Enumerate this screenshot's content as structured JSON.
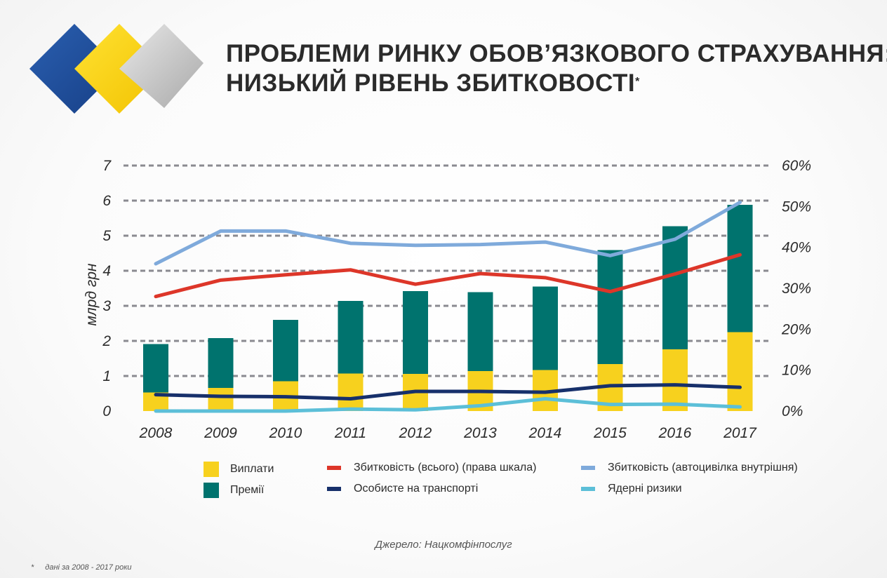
{
  "title": {
    "line1": "ПРОБЛЕМИ РИНКУ ОБОВ’ЯЗКОВОГО СТРАХУВАННЯ:",
    "line2": "НИЗЬКИЙ РІВЕНЬ ЗБИТКОВОСТІ",
    "marker": "*"
  },
  "logo": {
    "colors": [
      "#1f4e9c",
      "#f7d117",
      "#c9c9c9"
    ]
  },
  "chart_data": {
    "type": "bar+line",
    "categories": [
      "2008",
      "2009",
      "2010",
      "2011",
      "2012",
      "2013",
      "2014",
      "2015",
      "2016",
      "2017"
    ],
    "ylabel": "млрд грн",
    "left_axis": {
      "ticks": [
        "0",
        "1",
        "2",
        "3",
        "4",
        "5",
        "6",
        "7"
      ],
      "ylim": [
        0,
        7
      ]
    },
    "right_axis": {
      "ticks": [
        "0%",
        "10%",
        "20%",
        "30%",
        "40%",
        "50%",
        "60%"
      ],
      "ylim": [
        0,
        60
      ]
    },
    "grid": "dashed horizontal",
    "bars_stacked": [
      {
        "name": "Виплати",
        "color": "#f7d11e",
        "values": [
          0.53,
          0.66,
          0.85,
          1.07,
          1.06,
          1.14,
          1.17,
          1.34,
          1.76,
          2.25
        ]
      },
      {
        "name": "Премії",
        "color": "#00736e",
        "values": [
          1.38,
          1.42,
          1.75,
          2.07,
          2.36,
          2.25,
          2.38,
          3.25,
          3.51,
          3.63
        ]
      }
    ],
    "lines": [
      {
        "name": "Збитковість (всього) (права шкала)",
        "color": "#dd3629",
        "axis": "right",
        "values": [
          28,
          32,
          33.3,
          34.5,
          31,
          33.6,
          32.6,
          29.2,
          33.5,
          38.2
        ]
      },
      {
        "name": "Особисте на транспорті",
        "color": "#17306b",
        "axis": "right",
        "values": [
          4,
          3.6,
          3.5,
          3,
          4.8,
          4.8,
          4.6,
          6.2,
          6.4,
          5.8
        ]
      },
      {
        "name": "Збитковість (автоцивілка внутрішня)",
        "color": "#7faadb",
        "axis": "right",
        "values": [
          36,
          44,
          44,
          41,
          40.5,
          40.7,
          41.3,
          38,
          42,
          51
        ]
      },
      {
        "name": "Ядерні ризики",
        "color": "#5cbfd8",
        "axis": "right",
        "values": [
          0,
          0,
          0,
          0.5,
          0.3,
          1.3,
          3,
          1.6,
          1.7,
          1
        ]
      }
    ],
    "legend": [
      {
        "label": "Виплати",
        "kind": "box",
        "color": "#f7d11e"
      },
      {
        "label": "Премії",
        "kind": "box",
        "color": "#00736e"
      },
      {
        "label": "Збитковість (всього) (права шкала)",
        "kind": "line",
        "color": "#dd3629"
      },
      {
        "label": "Особисте на транспорті",
        "kind": "line",
        "color": "#17306b"
      },
      {
        "label": "Збитковість (автоцивілка внутрішня)",
        "kind": "line",
        "color": "#7faadb"
      },
      {
        "label": "Ядерні ризики",
        "kind": "line",
        "color": "#5cbfd8"
      }
    ]
  },
  "source": "Джерело: Нацкомфінпослуг",
  "footnote": {
    "marker": "*",
    "text": "дані за 2008 - 2017 роки"
  }
}
